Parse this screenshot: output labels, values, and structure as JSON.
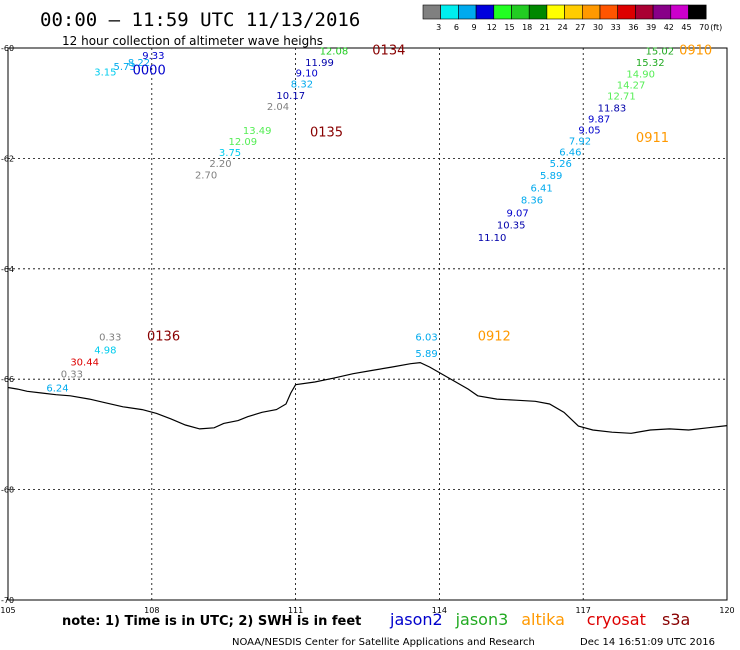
{
  "header": {
    "title": "00:00 – 11:59 UTC 11/13/2016",
    "subtitle": "12 hour collection of altimeter wave heighs"
  },
  "color_scale": {
    "labels": [
      "3",
      "6",
      "9",
      "12",
      "15",
      "18",
      "21",
      "24",
      "27",
      "30",
      "33",
      "36",
      "39",
      "42",
      "45",
      "70"
    ],
    "unit": "(ft)",
    "colors": [
      "#808080",
      "#00eeee",
      "#00aaee",
      "#0000dd",
      "#22ff22",
      "#22cc22",
      "#008800",
      "#ffff00",
      "#ffcc00",
      "#ff9900",
      "#ff5500",
      "#dd0000",
      "#aa0033",
      "#880088",
      "#cc00cc",
      "#000000"
    ]
  },
  "map": {
    "lon_ticks": [
      "105",
      "108",
      "111",
      "114",
      "117",
      "120"
    ],
    "lat_ticks": [
      "-60",
      "-62",
      "-64",
      "-66",
      "-68",
      "-70"
    ]
  },
  "passes": [
    {
      "label": "0000",
      "color": "#0000cc",
      "lon": 107.6,
      "lat": -60.48
    },
    {
      "label": "0134",
      "color": "#880000",
      "lon": 112.6,
      "lat": -60.12
    },
    {
      "label": "0135",
      "color": "#880000",
      "lon": 111.3,
      "lat": -61.6
    },
    {
      "label": "0136",
      "color": "#880000",
      "lon": 107.9,
      "lat": -65.3
    },
    {
      "label": "0910",
      "color": "#ff9900",
      "lon": 119.0,
      "lat": -60.12
    },
    {
      "label": "0911",
      "color": "#ff9900",
      "lon": 118.1,
      "lat": -61.7
    },
    {
      "label": "0912",
      "color": "#ff9900",
      "lon": 114.8,
      "lat": -65.3
    }
  ],
  "observations": [
    {
      "value": "9.33",
      "color": "#0000cc",
      "lon": 107.8,
      "lat": -60.2
    },
    {
      "value": "8.22",
      "color": "#00aaee",
      "lon": 107.5,
      "lat": -60.33
    },
    {
      "value": "5.73",
      "color": "#00aaee",
      "lon": 107.2,
      "lat": -60.4
    },
    {
      "value": "3.15",
      "color": "#00ccee",
      "lon": 106.8,
      "lat": -60.5
    },
    {
      "value": "12.08",
      "color": "#22cc22",
      "lon": 111.5,
      "lat": -60.12
    },
    {
      "value": "11.99",
      "color": "#0000aa",
      "lon": 111.2,
      "lat": -60.33
    },
    {
      "value": "9.10",
      "color": "#0000cc",
      "lon": 111.0,
      "lat": -60.52
    },
    {
      "value": "8.32",
      "color": "#00aaee",
      "lon": 110.9,
      "lat": -60.72
    },
    {
      "value": "10.17",
      "color": "#0000aa",
      "lon": 110.6,
      "lat": -60.92
    },
    {
      "value": "2.04",
      "color": "#808080",
      "lon": 110.4,
      "lat": -61.12
    },
    {
      "value": "13.49",
      "color": "#55ee55",
      "lon": 109.9,
      "lat": -61.56
    },
    {
      "value": "12.09",
      "color": "#55ee55",
      "lon": 109.6,
      "lat": -61.76
    },
    {
      "value": "3.75",
      "color": "#00ccee",
      "lon": 109.4,
      "lat": -61.96
    },
    {
      "value": "2.20",
      "color": "#808080",
      "lon": 109.2,
      "lat": -62.16
    },
    {
      "value": "2.70",
      "color": "#808080",
      "lon": 108.9,
      "lat": -62.36
    },
    {
      "value": "15.02",
      "color": "#22aa22",
      "lon": 118.3,
      "lat": -60.12
    },
    {
      "value": "15.32",
      "color": "#22aa22",
      "lon": 118.1,
      "lat": -60.33
    },
    {
      "value": "14.90",
      "color": "#55ee55",
      "lon": 117.9,
      "lat": -60.53
    },
    {
      "value": "14.27",
      "color": "#55ee55",
      "lon": 117.7,
      "lat": -60.73
    },
    {
      "value": "12.71",
      "color": "#55ee55",
      "lon": 117.5,
      "lat": -60.93
    },
    {
      "value": "11.83",
      "color": "#0000aa",
      "lon": 117.3,
      "lat": -61.15
    },
    {
      "value": "9.87",
      "color": "#0000cc",
      "lon": 117.1,
      "lat": -61.35
    },
    {
      "value": "9.05",
      "color": "#0000cc",
      "lon": 116.9,
      "lat": -61.55
    },
    {
      "value": "7.92",
      "color": "#00aaee",
      "lon": 116.7,
      "lat": -61.75
    },
    {
      "value": "6.46",
      "color": "#00aaee",
      "lon": 116.5,
      "lat": -61.95
    },
    {
      "value": "5.26",
      "color": "#00aaee",
      "lon": 116.3,
      "lat": -62.16
    },
    {
      "value": "5.89",
      "color": "#00aaee",
      "lon": 116.1,
      "lat": -62.37
    },
    {
      "value": "6.41",
      "color": "#00aaee",
      "lon": 115.9,
      "lat": -62.6
    },
    {
      "value": "8.36",
      "color": "#00aaee",
      "lon": 115.7,
      "lat": -62.82
    },
    {
      "value": "9.07",
      "color": "#0000cc",
      "lon": 115.4,
      "lat": -63.05
    },
    {
      "value": "10.35",
      "color": "#0000aa",
      "lon": 115.2,
      "lat": -63.27
    },
    {
      "value": "11.10",
      "color": "#0000aa",
      "lon": 114.8,
      "lat": -63.5
    },
    {
      "value": "0.33",
      "color": "#808080",
      "lon": 106.9,
      "lat": -65.3
    },
    {
      "value": "4.98",
      "color": "#00ccee",
      "lon": 106.8,
      "lat": -65.53
    },
    {
      "value": "30.44",
      "color": "#dd0000",
      "lon": 106.3,
      "lat": -65.75
    },
    {
      "value": "0.33",
      "color": "#808080",
      "lon": 106.1,
      "lat": -65.97
    },
    {
      "value": "6.24",
      "color": "#00aaee",
      "lon": 105.8,
      "lat": -66.22
    },
    {
      "value": "6.03",
      "color": "#00aaee",
      "lon": 113.5,
      "lat": -65.3
    },
    {
      "value": "5.89",
      "color": "#00aaee",
      "lon": 113.5,
      "lat": -65.6
    }
  ],
  "coastline": [
    [
      105.0,
      -66.15
    ],
    [
      105.2,
      -66.18
    ],
    [
      105.4,
      -66.22
    ],
    [
      105.7,
      -66.25
    ],
    [
      106.0,
      -66.28
    ],
    [
      106.3,
      -66.3
    ],
    [
      106.7,
      -66.36
    ],
    [
      107.0,
      -66.42
    ],
    [
      107.4,
      -66.5
    ],
    [
      107.8,
      -66.55
    ],
    [
      108.1,
      -66.62
    ],
    [
      108.4,
      -66.72
    ],
    [
      108.7,
      -66.83
    ],
    [
      109.0,
      -66.9
    ],
    [
      109.3,
      -66.88
    ],
    [
      109.5,
      -66.8
    ],
    [
      109.8,
      -66.75
    ],
    [
      110.0,
      -66.68
    ],
    [
      110.3,
      -66.6
    ],
    [
      110.6,
      -66.55
    ],
    [
      110.8,
      -66.45
    ],
    [
      110.9,
      -66.25
    ],
    [
      111.0,
      -66.1
    ],
    [
      111.4,
      -66.05
    ],
    [
      111.8,
      -65.98
    ],
    [
      112.2,
      -65.9
    ],
    [
      112.6,
      -65.84
    ],
    [
      113.0,
      -65.78
    ],
    [
      113.4,
      -65.72
    ],
    [
      113.6,
      -65.7
    ],
    [
      113.8,
      -65.78
    ],
    [
      114.0,
      -65.88
    ],
    [
      114.2,
      -65.98
    ],
    [
      114.4,
      -66.08
    ],
    [
      114.6,
      -66.18
    ],
    [
      114.8,
      -66.3
    ],
    [
      115.2,
      -66.36
    ],
    [
      115.6,
      -66.38
    ],
    [
      116.0,
      -66.4
    ],
    [
      116.3,
      -66.45
    ],
    [
      116.6,
      -66.6
    ],
    [
      116.9,
      -66.85
    ],
    [
      117.2,
      -66.92
    ],
    [
      117.6,
      -66.96
    ],
    [
      118.0,
      -66.98
    ],
    [
      118.4,
      -66.92
    ],
    [
      118.8,
      -66.9
    ],
    [
      119.2,
      -66.92
    ],
    [
      119.6,
      -66.88
    ],
    [
      120.0,
      -66.84
    ]
  ],
  "footer": {
    "note": "note: 1) Time is in UTC; 2) SWH is in feet",
    "credit": "NOAA/NESDIS Center for Satellite Applications and Research",
    "timestamp": "Dec 14 16:51:09 UTC 2016"
  },
  "legend": [
    {
      "name": "jason2",
      "color": "#0000cc"
    },
    {
      "name": "jason3",
      "color": "#22aa22"
    },
    {
      "name": "altika",
      "color": "#ff9900"
    },
    {
      "name": "cryosat",
      "color": "#dd0000"
    },
    {
      "name": "s3a",
      "color": "#880000"
    }
  ]
}
